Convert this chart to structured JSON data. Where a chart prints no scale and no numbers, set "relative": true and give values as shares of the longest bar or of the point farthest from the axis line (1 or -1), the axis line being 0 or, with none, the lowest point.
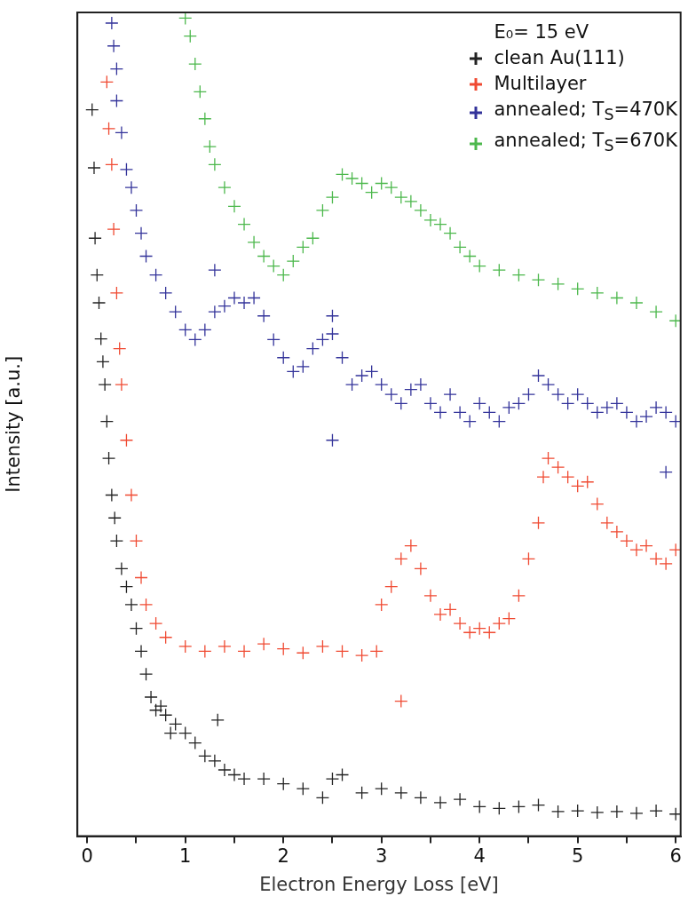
{
  "chart_data": {
    "type": "scatter",
    "xlabel": "Electron Energy Loss [eV]",
    "ylabel": "Intensity [a.u.]",
    "legend_title": "E₀= 15 eV",
    "legend": "top right",
    "marker": "cross",
    "relative": true,
    "grid": false,
    "xlim": [
      -0.1,
      6.05
    ],
    "xticks": [
      0,
      {
        "value": 0.5,
        "label": null
      },
      1,
      {
        "value": 1.5,
        "label": null
      },
      2,
      {
        "value": 2.5,
        "label": null
      },
      3,
      {
        "value": 3.5,
        "label": null
      },
      4,
      {
        "value": 4.5,
        "label": null
      },
      5,
      {
        "value": 5.5,
        "label": null
      },
      6
    ],
    "series": [
      {
        "name": "clean Au(111)",
        "color": "#222222",
        "x": [
          0.05,
          0.07,
          0.08,
          0.1,
          0.12,
          0.14,
          0.16,
          0.18,
          0.2,
          0.22,
          0.25,
          0.28,
          0.3,
          0.35,
          0.4,
          0.45,
          0.5,
          0.55,
          0.6,
          0.65,
          0.7,
          0.75,
          0.8,
          0.85,
          0.9,
          1.0,
          1.1,
          1.2,
          1.3,
          1.33,
          1.4,
          1.5,
          1.6,
          1.8,
          2.0,
          2.2,
          2.4,
          2.5,
          2.6,
          2.8,
          3.0,
          3.2,
          3.4,
          3.6,
          3.8,
          4.0,
          4.2,
          4.4,
          4.6,
          4.8,
          5.0,
          5.2,
          5.4,
          5.6,
          5.8,
          6.0
        ],
        "values": [
          0.888,
          0.817,
          0.731,
          0.686,
          0.652,
          0.608,
          0.58,
          0.552,
          0.507,
          0.462,
          0.417,
          0.389,
          0.361,
          0.327,
          0.305,
          0.283,
          0.254,
          0.226,
          0.198,
          0.17,
          0.154,
          0.159,
          0.148,
          0.126,
          0.137,
          0.126,
          0.114,
          0.098,
          0.092,
          0.142,
          0.081,
          0.075,
          0.07,
          0.07,
          0.064,
          0.058,
          0.047,
          0.07,
          0.075,
          0.053,
          0.058,
          0.053,
          0.047,
          0.041,
          0.045,
          0.036,
          0.034,
          0.036,
          0.038,
          0.03,
          0.031,
          0.029,
          0.03,
          0.028,
          0.031,
          0.027
        ]
      },
      {
        "name": "Multilayer",
        "color": "#f04a32",
        "x": [
          0.2,
          0.22,
          0.25,
          0.27,
          0.3,
          0.33,
          0.35,
          0.4,
          0.45,
          0.5,
          0.55,
          0.6,
          0.7,
          0.8,
          1.0,
          1.2,
          1.4,
          1.6,
          1.8,
          2.0,
          2.2,
          2.4,
          2.6,
          2.8,
          2.95,
          3.0,
          3.1,
          3.2,
          3.2,
          3.3,
          3.4,
          3.5,
          3.6,
          3.7,
          3.8,
          3.9,
          4.0,
          4.1,
          4.2,
          4.3,
          4.4,
          4.5,
          4.6,
          4.65,
          4.7,
          4.8,
          4.9,
          5.0,
          5.1,
          5.2,
          5.3,
          5.4,
          5.5,
          5.6,
          5.7,
          5.8,
          5.9,
          6.0
        ],
        "values": [
          0.922,
          0.865,
          0.821,
          0.742,
          0.664,
          0.596,
          0.552,
          0.484,
          0.417,
          0.361,
          0.316,
          0.283,
          0.26,
          0.243,
          0.232,
          0.226,
          0.232,
          0.226,
          0.235,
          0.229,
          0.224,
          0.232,
          0.226,
          0.221,
          0.226,
          0.283,
          0.305,
          0.339,
          0.165,
          0.355,
          0.327,
          0.294,
          0.271,
          0.277,
          0.26,
          0.249,
          0.254,
          0.249,
          0.26,
          0.266,
          0.294,
          0.339,
          0.383,
          0.439,
          0.462,
          0.451,
          0.439,
          0.428,
          0.433,
          0.406,
          0.383,
          0.372,
          0.361,
          0.35,
          0.355,
          0.339,
          0.333,
          0.35
        ]
      },
      {
        "name": "annealed; T$_{S}$=470K",
        "color": "#33339a",
        "x": [
          0.25,
          0.27,
          0.3,
          0.3,
          0.35,
          0.4,
          0.45,
          0.5,
          0.55,
          0.6,
          0.7,
          0.8,
          0.9,
          1.0,
          1.1,
          1.2,
          1.3,
          1.3,
          1.4,
          1.5,
          1.6,
          1.7,
          1.8,
          1.9,
          2.0,
          2.1,
          2.2,
          2.3,
          2.4,
          2.5,
          2.5,
          2.5,
          2.6,
          2.7,
          2.8,
          2.9,
          3.0,
          3.1,
          3.2,
          3.3,
          3.4,
          3.5,
          3.6,
          3.7,
          3.8,
          3.9,
          4.0,
          4.1,
          4.2,
          4.3,
          4.4,
          4.5,
          4.6,
          4.7,
          4.8,
          4.9,
          5.0,
          5.1,
          5.2,
          5.3,
          5.4,
          5.5,
          5.6,
          5.7,
          5.8,
          5.9,
          5.9,
          6.0
        ],
        "values": [
          0.994,
          0.966,
          0.938,
          0.899,
          0.86,
          0.815,
          0.793,
          0.765,
          0.737,
          0.709,
          0.686,
          0.664,
          0.641,
          0.619,
          0.607,
          0.619,
          0.641,
          0.692,
          0.648,
          0.658,
          0.652,
          0.658,
          0.636,
          0.607,
          0.585,
          0.568,
          0.574,
          0.596,
          0.607,
          0.614,
          0.636,
          0.484,
          0.585,
          0.552,
          0.563,
          0.568,
          0.552,
          0.54,
          0.529,
          0.546,
          0.552,
          0.529,
          0.518,
          0.54,
          0.518,
          0.507,
          0.529,
          0.518,
          0.507,
          0.524,
          0.529,
          0.54,
          0.563,
          0.552,
          0.54,
          0.529,
          0.54,
          0.529,
          0.518,
          0.524,
          0.529,
          0.518,
          0.507,
          0.513,
          0.524,
          0.518,
          0.445,
          0.507
        ]
      },
      {
        "name": "annealed; T$_{S}$=670K",
        "color": "#4cb84c",
        "x": [
          1.0,
          1.05,
          1.1,
          1.15,
          1.2,
          1.25,
          1.3,
          1.4,
          1.5,
          1.6,
          1.7,
          1.8,
          1.9,
          2.0,
          2.1,
          2.2,
          2.3,
          2.4,
          2.5,
          2.6,
          2.7,
          2.8,
          2.9,
          3.0,
          3.1,
          3.2,
          3.3,
          3.4,
          3.5,
          3.6,
          3.7,
          3.8,
          3.9,
          4.0,
          4.2,
          4.4,
          4.6,
          4.8,
          5.0,
          5.2,
          5.4,
          5.6,
          5.8,
          6.0
        ],
        "values": [
          1,
          0.978,
          0.944,
          0.91,
          0.877,
          0.843,
          0.821,
          0.793,
          0.77,
          0.748,
          0.726,
          0.709,
          0.697,
          0.686,
          0.703,
          0.72,
          0.731,
          0.765,
          0.781,
          0.809,
          0.804,
          0.798,
          0.787,
          0.798,
          0.793,
          0.781,
          0.776,
          0.765,
          0.753,
          0.748,
          0.737,
          0.72,
          0.709,
          0.697,
          0.692,
          0.686,
          0.68,
          0.675,
          0.669,
          0.664,
          0.658,
          0.652,
          0.641,
          0.63
        ]
      }
    ]
  }
}
